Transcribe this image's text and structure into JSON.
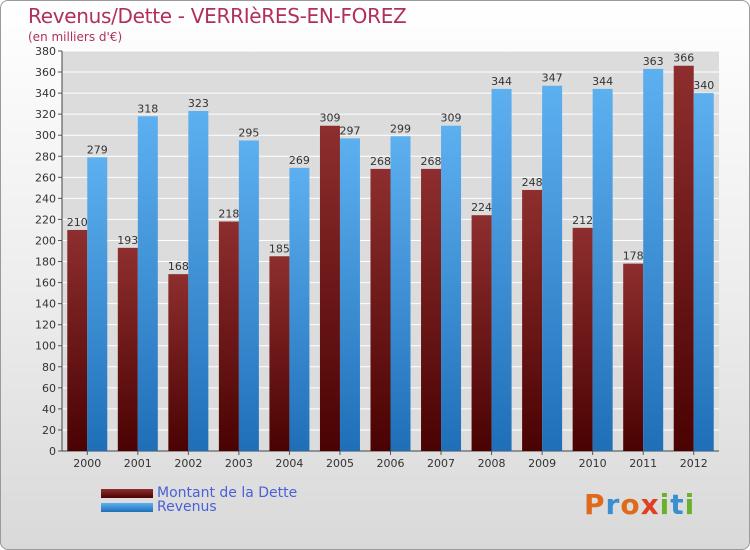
{
  "title": "Revenus/Dette - VERRIèRES-EN-FOREZ",
  "subtitle": "(en milliers d'€)",
  "logo": {
    "text": "Proxiti",
    "letters": [
      "P",
      "r",
      "o",
      "x",
      "i",
      "t",
      "i"
    ],
    "colors": [
      "#e06a1c",
      "#3b8fd0",
      "#e06a1c",
      "#e04020",
      "#6ab02a",
      "#3b8fd0",
      "#6ab02a"
    ]
  },
  "chart_data": {
    "type": "bar",
    "categories": [
      "2000",
      "2001",
      "2002",
      "2003",
      "2004",
      "2005",
      "2006",
      "2007",
      "2008",
      "2009",
      "2010",
      "2011",
      "2012"
    ],
    "series": [
      {
        "name": "Montant de la Dette",
        "values": [
          210,
          193,
          168,
          218,
          185,
          309,
          268,
          268,
          224,
          248,
          212,
          178,
          366
        ],
        "color": "#7a1a1a"
      },
      {
        "name": "Revenus",
        "values": [
          279,
          318,
          323,
          295,
          269,
          297,
          299,
          309,
          344,
          347,
          344,
          363,
          340
        ],
        "color": "#3d98e0"
      }
    ],
    "ylim": [
      0,
      380
    ],
    "yticks": [
      "0",
      "20",
      "40",
      "60",
      "80",
      "100",
      "120",
      "140",
      "160",
      "180",
      "200",
      "220",
      "240",
      "260",
      "280",
      "300",
      "320",
      "340",
      "360",
      "380"
    ],
    "grid": true,
    "legend_position": "bottom-left"
  }
}
